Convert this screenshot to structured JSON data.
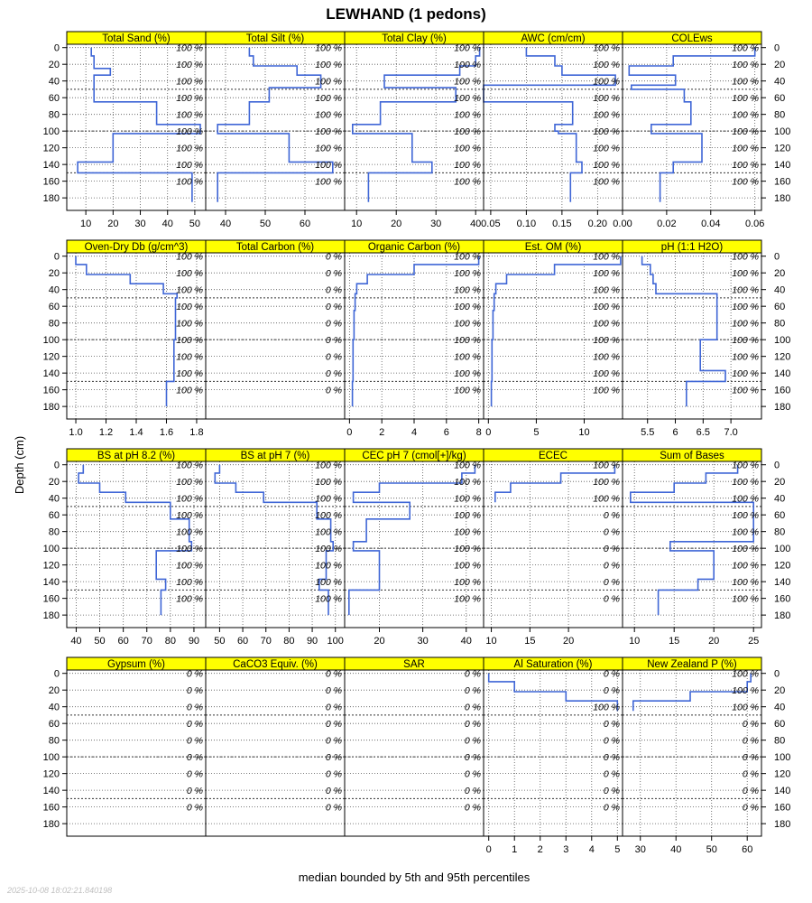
{
  "chart_data": {
    "type": "line",
    "title": "LEWHAND (1 pedons)",
    "xlabel": "median bounded by 5th and 95th percentiles",
    "ylabel": "Depth (cm)",
    "timestamp": "2025-10-08 18:02:21.840198",
    "depth_ticks": [
      0,
      20,
      40,
      60,
      80,
      100,
      120,
      140,
      160,
      180
    ],
    "ylim": [
      -4,
      195
    ],
    "pct_depths": [
      0,
      20,
      40,
      60,
      80,
      100,
      120,
      140,
      160
    ],
    "horizon_lines": [
      50,
      100,
      150
    ],
    "colors": {
      "strip": "#FFFF00",
      "line": "#3F66D6",
      "grid": "#555555"
    },
    "panels": [
      {
        "name": "Total Sand (%)",
        "xlim": [
          3,
          54
        ],
        "ticks": [
          10,
          20,
          30,
          40,
          50
        ],
        "pct": "100 %",
        "depth": [
          0,
          10,
          10,
          25,
          25,
          33,
          33,
          48,
          48,
          65,
          65,
          92,
          92,
          103,
          103,
          137,
          137,
          150,
          150,
          185
        ],
        "value": [
          12,
          12,
          13,
          13,
          19,
          19,
          13,
          13,
          13,
          13,
          36,
          36,
          52,
          52,
          20,
          20,
          7,
          7,
          49,
          49
        ]
      },
      {
        "name": "Total Silt (%)",
        "xlim": [
          35,
          70
        ],
        "ticks": [
          40,
          50,
          60
        ],
        "pct": "100 %",
        "depth": [
          0,
          10,
          10,
          22,
          22,
          33,
          33,
          48,
          48,
          65,
          65,
          92,
          92,
          103,
          103,
          137,
          137,
          150,
          150,
          185
        ],
        "value": [
          46,
          46,
          47,
          47,
          58,
          58,
          64,
          64,
          51,
          51,
          46,
          46,
          38,
          38,
          56,
          56,
          67,
          67,
          38,
          38
        ]
      },
      {
        "name": "Total Clay (%)",
        "xlim": [
          7,
          42
        ],
        "ticks": [
          10,
          20,
          30,
          40
        ],
        "pct": "100 %",
        "depth": [
          0,
          10,
          10,
          22,
          22,
          33,
          33,
          48,
          48,
          65,
          65,
          92,
          92,
          103,
          103,
          137,
          137,
          150,
          150,
          185
        ],
        "value": [
          41,
          41,
          40,
          40,
          36,
          36,
          17,
          17,
          35,
          35,
          16,
          16,
          9,
          9,
          24,
          24,
          29,
          29,
          13,
          13
        ]
      },
      {
        "name": "AWC (cm/cm)",
        "xlim": [
          0.04,
          0.235
        ],
        "ticks": [
          0.05,
          0.1,
          0.15,
          0.2
        ],
        "tickLabels": [
          "0.05",
          "0.10",
          "0.15",
          "0.20"
        ],
        "pct": "100 %",
        "depth": [
          0,
          10,
          10,
          22,
          22,
          33,
          33,
          45,
          45,
          50,
          50,
          65,
          65,
          92,
          92,
          100,
          100,
          103,
          103,
          137,
          137,
          150,
          150,
          185
        ],
        "value": [
          0.1,
          0.1,
          0.14,
          0.14,
          0.15,
          0.15,
          0.225,
          0.225,
          0.04,
          0.04,
          0.04,
          0.04,
          0.165,
          0.165,
          0.14,
          0.14,
          0.145,
          0.145,
          0.17,
          0.17,
          0.178,
          0.178,
          0.162,
          0.162
        ]
      },
      {
        "name": "COLEws",
        "xlim": [
          0,
          0.063
        ],
        "ticks": [
          0,
          0.02,
          0.04,
          0.06
        ],
        "tickLabels": [
          "0.00",
          "0.02",
          "0.04",
          "0.06"
        ],
        "pct": "100 %",
        "depth": [
          0,
          10,
          10,
          22,
          22,
          33,
          33,
          45,
          45,
          50,
          50,
          65,
          65,
          92,
          92,
          103,
          103,
          137,
          137,
          150,
          150,
          185
        ],
        "value": [
          0.06,
          0.06,
          0.023,
          0.023,
          0.003,
          0.003,
          0.024,
          0.024,
          0.004,
          0.004,
          0.028,
          0.028,
          0.031,
          0.031,
          0.013,
          0.013,
          0.036,
          0.036,
          0.023,
          0.023,
          0.017,
          0.017
        ]
      },
      {
        "name": "Oven-Dry Db (g/cm^3)",
        "xlim": [
          0.94,
          1.86
        ],
        "ticks": [
          1.0,
          1.2,
          1.4,
          1.6,
          1.8
        ],
        "tickLabels": [
          "1.0",
          "1.2",
          "1.4",
          "1.6",
          "1.8"
        ],
        "pct": "100 %",
        "depth": [
          0,
          10,
          10,
          22,
          22,
          33,
          33,
          45,
          45,
          50,
          50,
          100,
          100,
          150,
          150,
          180
        ],
        "value": [
          1.0,
          1.0,
          1.07,
          1.07,
          1.36,
          1.36,
          1.58,
          1.58,
          1.67,
          1.67,
          1.66,
          1.66,
          1.65,
          1.65,
          1.6,
          1.6
        ]
      },
      {
        "name": "Total Carbon (%)",
        "xlim": [
          0,
          1
        ],
        "ticks": [],
        "pct": "0 %",
        "depth": [],
        "value": []
      },
      {
        "name": "Organic Carbon (%)",
        "xlim": [
          -0.3,
          8.3
        ],
        "ticks": [
          0,
          2,
          4,
          6,
          8
        ],
        "pct": "100 %",
        "depth": [
          0,
          10,
          10,
          22,
          22,
          33,
          33,
          45,
          45,
          65,
          65,
          100,
          100,
          150,
          150,
          180
        ],
        "value": [
          8.0,
          8.0,
          4.0,
          4.0,
          1.1,
          1.1,
          0.45,
          0.45,
          0.35,
          0.35,
          0.28,
          0.28,
          0.22,
          0.22,
          0.18,
          0.18
        ]
      },
      {
        "name": "Est. OM (%)",
        "xlim": [
          -0.5,
          14
        ],
        "ticks": [
          0,
          5,
          10
        ],
        "pct": "100 %",
        "depth": [
          0,
          10,
          10,
          22,
          22,
          33,
          33,
          45,
          45,
          65,
          65,
          100,
          100,
          150,
          150,
          180
        ],
        "value": [
          13.8,
          13.8,
          6.9,
          6.9,
          1.9,
          1.9,
          0.78,
          0.78,
          0.6,
          0.6,
          0.48,
          0.48,
          0.38,
          0.38,
          0.31,
          0.31
        ]
      },
      {
        "name": "pH (1:1 H2O)",
        "xlim": [
          5.05,
          7.55
        ],
        "ticks": [
          5.5,
          6.0,
          6.5,
          7.0
        ],
        "tickLabels": [
          "5.5",
          "6",
          "6.5",
          "7.0"
        ],
        "pct": "100 %",
        "depth": [
          0,
          10,
          10,
          22,
          22,
          33,
          33,
          45,
          45,
          100,
          100,
          137,
          137,
          150,
          150,
          180
        ],
        "value": [
          5.4,
          5.4,
          5.55,
          5.55,
          5.6,
          5.6,
          5.65,
          5.65,
          6.75,
          6.75,
          6.45,
          6.45,
          6.9,
          6.9,
          6.2,
          6.2
        ]
      },
      {
        "name": "BS at pH 8.2 (%)",
        "xlim": [
          36,
          95
        ],
        "ticks": [
          40,
          50,
          60,
          70,
          80,
          90
        ],
        "pct": "100 %",
        "depth": [
          0,
          10,
          10,
          22,
          22,
          33,
          33,
          45,
          45,
          65,
          65,
          92,
          92,
          103,
          103,
          137,
          137,
          150,
          150,
          180
        ],
        "value": [
          43,
          43,
          41,
          41,
          50,
          50,
          61,
          61,
          80,
          80,
          88,
          88,
          89,
          89,
          74,
          74,
          78,
          78,
          76,
          76
        ]
      },
      {
        "name": "BS at pH 7 (%)",
        "xlim": [
          44,
          104
        ],
        "ticks": [
          50,
          60,
          70,
          80,
          90,
          100
        ],
        "pct": "100 %",
        "depth": [
          0,
          10,
          10,
          22,
          22,
          33,
          33,
          45,
          45,
          65,
          65,
          92,
          92,
          103,
          103,
          137,
          137,
          150,
          150,
          180
        ],
        "value": [
          50,
          50,
          48,
          48,
          57,
          57,
          69,
          69,
          92,
          92,
          98,
          98,
          99,
          99,
          96,
          96,
          93,
          93,
          97,
          97
        ]
      },
      {
        "name": "CEC pH 7 (cmol[+]/kg)",
        "xlim": [
          12,
          44
        ],
        "ticks": [
          20,
          30,
          40
        ],
        "pct": "100 %",
        "depth": [
          0,
          10,
          10,
          22,
          22,
          33,
          33,
          45,
          45,
          65,
          65,
          92,
          92,
          103,
          103,
          137,
          137,
          150,
          150,
          180
        ],
        "value": [
          42,
          42,
          39,
          39,
          20,
          20,
          14,
          14,
          27,
          27,
          17,
          17,
          14,
          14,
          20,
          20,
          20,
          20,
          13,
          13
        ]
      },
      {
        "name": "ECEC",
        "xlim": [
          9,
          27
        ],
        "ticks": [
          10,
          15,
          20
        ],
        "pct": "100 %",
        "pct2": "0 %",
        "pctSplit": 40,
        "depth": [
          0,
          10,
          10,
          22,
          22,
          33,
          33,
          45
        ],
        "value": [
          26,
          26,
          19,
          19,
          12.5,
          12.5,
          10.5,
          10.5
        ]
      },
      {
        "name": "Sum of Bases",
        "xlim": [
          8.5,
          26
        ],
        "ticks": [
          10,
          15,
          20,
          25
        ],
        "pct": "100 %",
        "depth": [
          0,
          10,
          10,
          22,
          22,
          33,
          33,
          45,
          45,
          65,
          65,
          92,
          92,
          103,
          103,
          137,
          137,
          150,
          150,
          180
        ],
        "value": [
          23,
          23,
          19,
          19,
          15,
          15,
          9.5,
          9.5,
          25,
          25,
          25,
          25,
          14.5,
          14.5,
          20,
          20,
          18,
          18,
          13,
          13
        ]
      },
      {
        "name": "Gypsum (%)",
        "xlim": [
          0,
          1
        ],
        "ticks": [],
        "pct": "0 %",
        "depth": [],
        "value": []
      },
      {
        "name": "CaCO3 Equiv. (%)",
        "xlim": [
          0,
          1
        ],
        "ticks": [],
        "pct": "0 %",
        "depth": [],
        "value": []
      },
      {
        "name": "SAR",
        "xlim": [
          0,
          1
        ],
        "ticks": [],
        "pct": "0 %",
        "depth": [],
        "value": []
      },
      {
        "name": "Al Saturation (%)",
        "xlim": [
          -0.2,
          5.2
        ],
        "ticks": [
          0,
          1,
          2,
          3,
          4,
          5
        ],
        "pct": "0 %",
        "pct2": "100 %",
        "pct2Depths": [
          40
        ],
        "pctSplit": 999,
        "depth": [
          0,
          10,
          10,
          22,
          22,
          33,
          33,
          45
        ],
        "value": [
          0,
          0,
          1,
          1,
          3,
          3,
          5,
          5
        ]
      },
      {
        "name": "New Zealand P (%)",
        "xlim": [
          25,
          64
        ],
        "ticks": [
          30,
          40,
          50,
          60
        ],
        "pct": "100 %",
        "pct2": "0 %",
        "pctSplit": 40,
        "depth": [
          0,
          10,
          10,
          22,
          22,
          33,
          33,
          45
        ],
        "value": [
          61,
          61,
          60,
          60,
          44,
          44,
          28,
          28
        ]
      }
    ]
  }
}
